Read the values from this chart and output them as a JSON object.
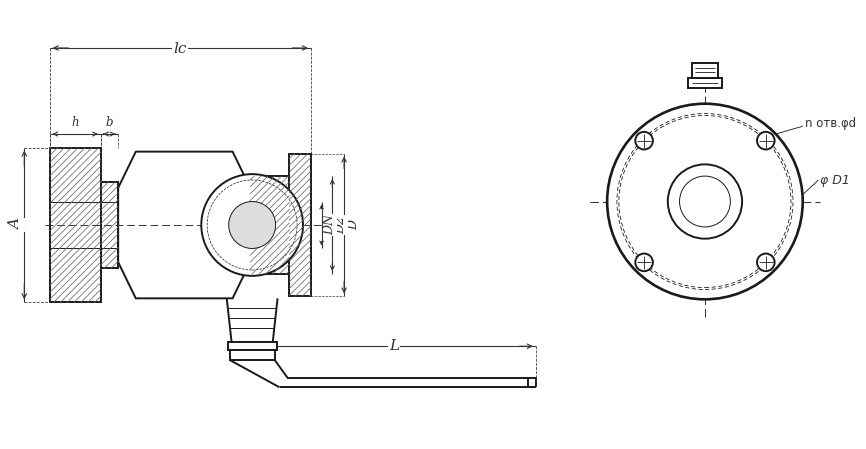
{
  "bg_color": "#ffffff",
  "line_color": "#1a1a1a",
  "dim_color": "#333333",
  "fig_width": 8.66,
  "fig_height": 4.49,
  "labels": {
    "L": "L",
    "Lc": "lc",
    "A": "A",
    "h": "h",
    "b": "b",
    "DN": "DN",
    "D2": "D2",
    "D": "D",
    "n_otv_d": "n отв.φd",
    "phi_D1": "φ D1"
  }
}
